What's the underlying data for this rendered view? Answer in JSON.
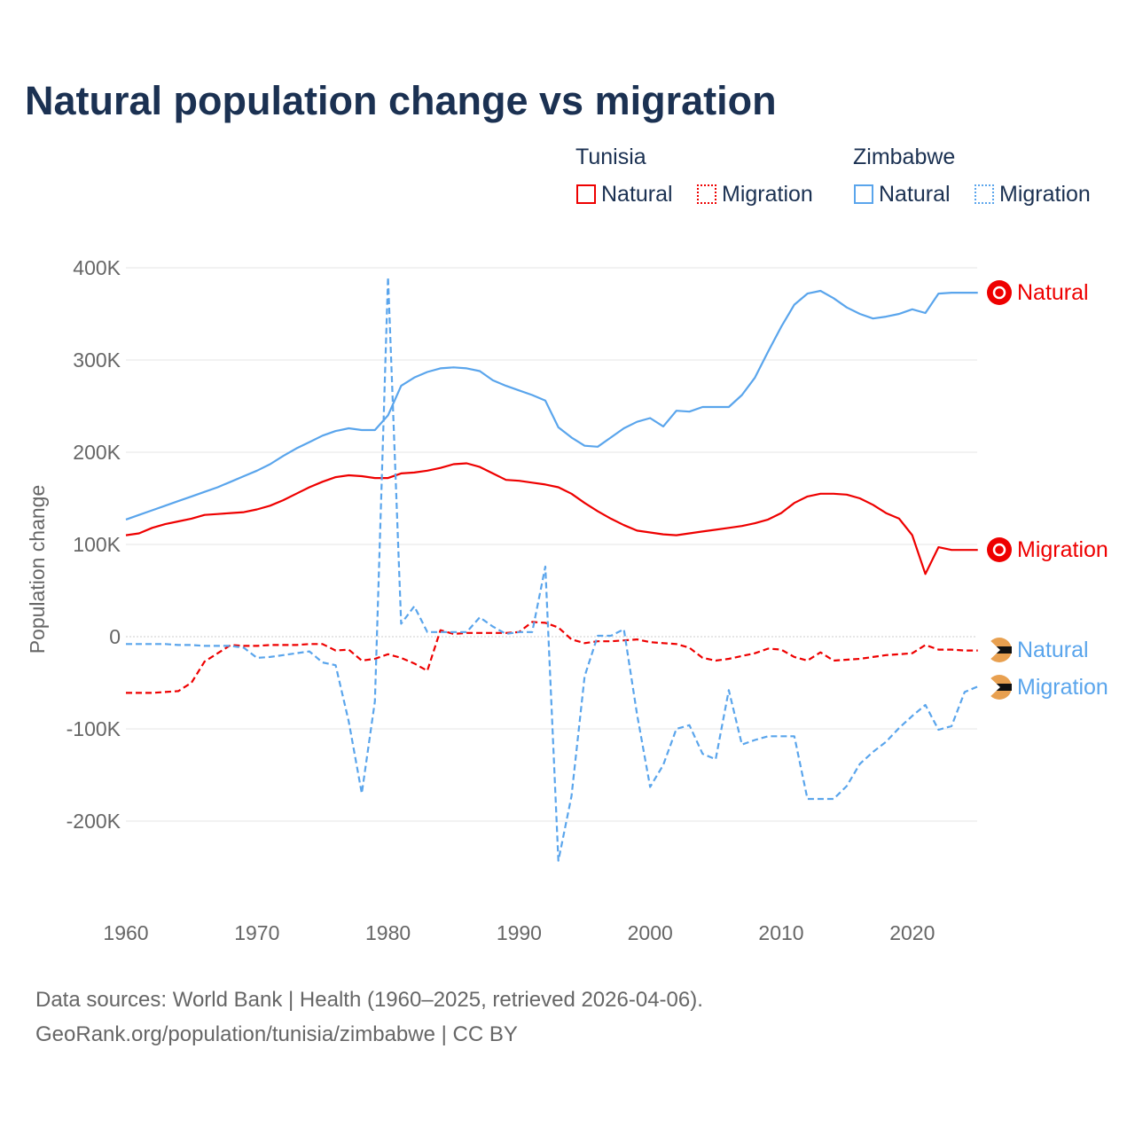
{
  "chart_data": {
    "type": "line",
    "title": "Natural population change vs migration",
    "ylabel": "Population change",
    "xlabel": "",
    "ylim": [
      -300000,
      400000
    ],
    "xlim": [
      1960,
      2025
    ],
    "yticks": [
      {
        "v": 400000,
        "label": "400K"
      },
      {
        "v": 300000,
        "label": "300K"
      },
      {
        "v": 200000,
        "label": "200K"
      },
      {
        "v": 100000,
        "label": "100K"
      },
      {
        "v": 0,
        "label": "0"
      },
      {
        "v": -100000,
        "label": "-100K"
      },
      {
        "v": -200000,
        "label": "-200K"
      }
    ],
    "xticks": [
      {
        "v": 1960,
        "label": "1960"
      },
      {
        "v": 1970,
        "label": "1970"
      },
      {
        "v": 1980,
        "label": "1980"
      },
      {
        "v": 1990,
        "label": "1990"
      },
      {
        "v": 2000,
        "label": "2000"
      },
      {
        "v": 2010,
        "label": "2010"
      },
      {
        "v": 2020,
        "label": "2020"
      }
    ],
    "grid": true,
    "legend_position": "top-right",
    "start_year": 1960,
    "series": [
      {
        "name": "Natural",
        "country": "Tunisia",
        "color": "#ee0000",
        "dash": false,
        "end_label": "Natural",
        "values_k": [
          110,
          112,
          118,
          122,
          125,
          128,
          132,
          133,
          134,
          135,
          138,
          142,
          148,
          155,
          162,
          168,
          173,
          175,
          174,
          172,
          172,
          177,
          178,
          180,
          183,
          187,
          188,
          184,
          177,
          170,
          169,
          167,
          165,
          162,
          155,
          145,
          136,
          128,
          121,
          115,
          113,
          111,
          110,
          112,
          114,
          116,
          118,
          120,
          123,
          127,
          134,
          145,
          152,
          155,
          155,
          154,
          150,
          143,
          134,
          128,
          110,
          68,
          97,
          94,
          94,
          94
        ]
      },
      {
        "name": "Migration",
        "country": "Tunisia",
        "color": "#ee0000",
        "dash": true,
        "end_label": "Migration",
        "values_k": [
          -61,
          -61,
          -61,
          -60,
          -59,
          -50,
          -27,
          -18,
          -9,
          -10,
          -10,
          -9,
          -9,
          -9,
          -8,
          -8,
          -15,
          -14,
          -26,
          -24,
          -19,
          -23,
          -29,
          -37,
          7,
          3,
          4,
          4,
          4,
          4,
          5,
          16,
          15,
          10,
          -3,
          -7,
          -5,
          -5,
          -4,
          -3,
          -6,
          -7,
          -8,
          -12,
          -23,
          -26,
          -24,
          -21,
          -18,
          -13,
          -14,
          -22,
          -26,
          -17,
          -26,
          -25,
          -24,
          -22,
          -20,
          -19,
          -18,
          -9,
          -14,
          -14,
          -15,
          -15
        ]
      },
      {
        "name": "Natural",
        "country": "Zimbabwe",
        "color": "#5aa5ec",
        "dash": false,
        "end_label": "Natural",
        "values_k": [
          127,
          132,
          137,
          142,
          147,
          152,
          157,
          162,
          168,
          174,
          180,
          187,
          196,
          204,
          211,
          218,
          223,
          226,
          224,
          224,
          240,
          272,
          281,
          287,
          291,
          292,
          291,
          288,
          278,
          272,
          267,
          262,
          256,
          227,
          216,
          207,
          206,
          216,
          226,
          233,
          237,
          228,
          245,
          244,
          249,
          249,
          249,
          262,
          281,
          309,
          336,
          360,
          372,
          375,
          367,
          357,
          350,
          345,
          347,
          350,
          355,
          351,
          372,
          373,
          373,
          373
        ]
      },
      {
        "name": "Migration",
        "country": "Zimbabwe",
        "color": "#5aa5ec",
        "dash": true,
        "end_label": "Migration",
        "values_k": [
          -8,
          -8,
          -8,
          -8,
          -9,
          -9,
          -10,
          -10,
          -10,
          -12,
          -23,
          -22,
          -20,
          -18,
          -16,
          -28,
          -31,
          -92,
          -170,
          -70,
          390,
          14,
          33,
          5,
          5,
          5,
          5,
          21,
          11,
          3,
          5,
          5,
          76,
          -243,
          -173,
          -43,
          1,
          1,
          8,
          -84,
          -163,
          -139,
          -100,
          -96,
          -127,
          -133,
          -58,
          -117,
          -112,
          -108,
          -108,
          -108,
          -176,
          -176,
          -176,
          -162,
          -138,
          -125,
          -114,
          -99,
          -86,
          -74,
          -101,
          -97,
          -60,
          -54
        ]
      }
    ]
  },
  "legend": {
    "tunisia": "Tunisia",
    "zimbabwe": "Zimbabwe",
    "natural": "Natural",
    "migration": "Migration"
  },
  "footer": {
    "line1": "Data sources: World Bank | Health (1960–2025, retrieved 2026-04-06).",
    "line2": "GeoRank.org/population/tunisia/zimbabwe | CC BY"
  }
}
